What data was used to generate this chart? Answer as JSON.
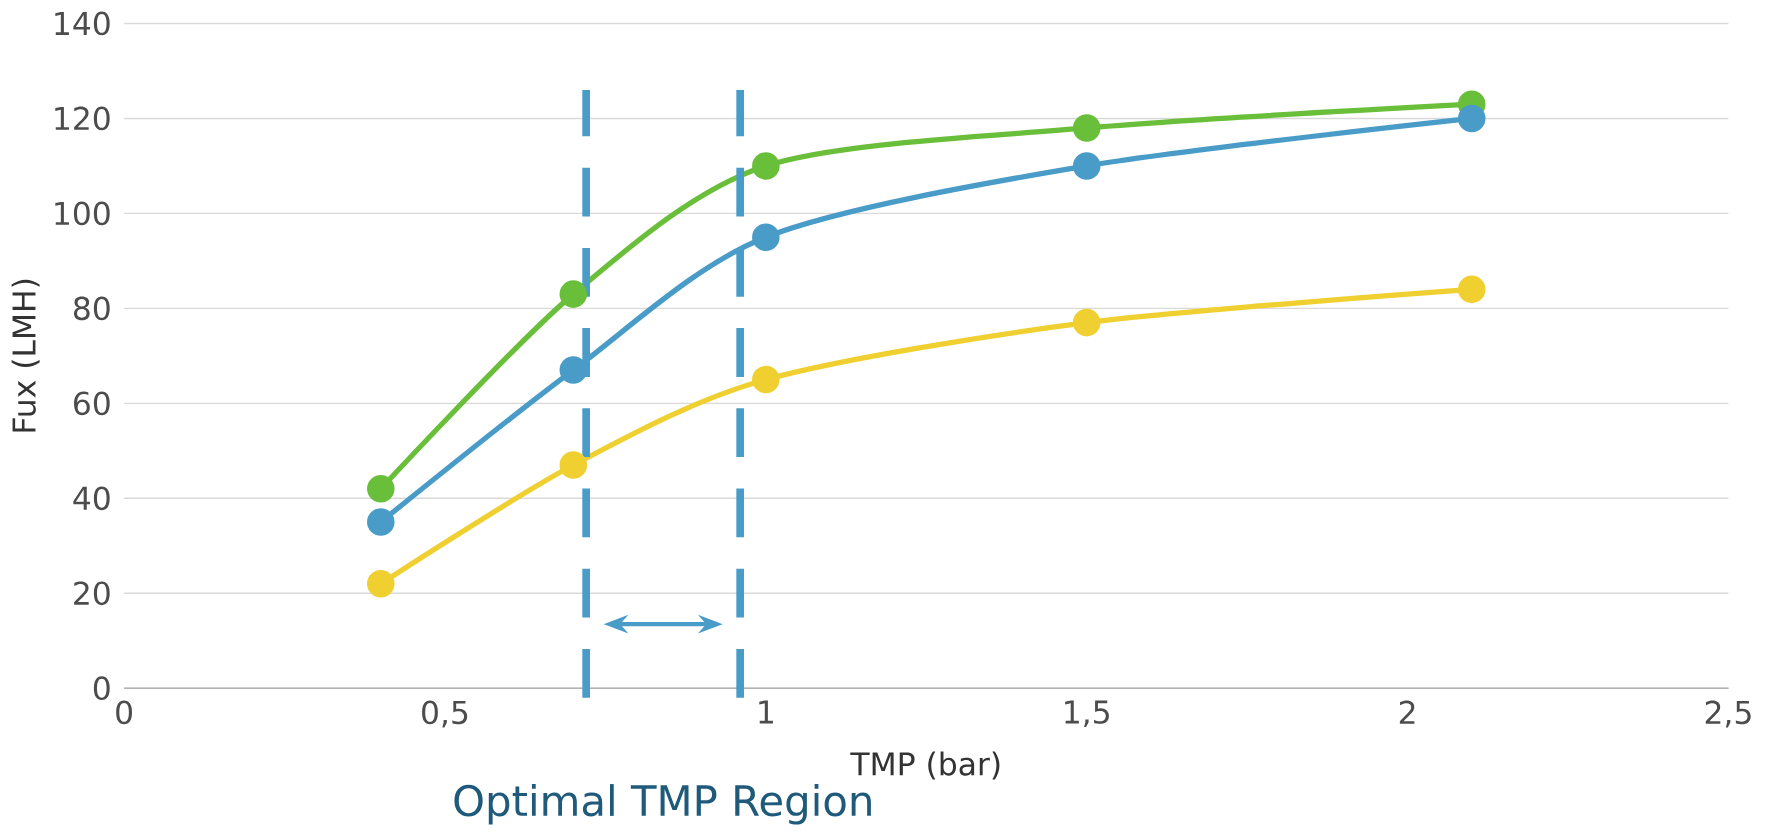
{
  "chart_data": {
    "type": "line",
    "xlabel": "TMP (bar)",
    "ylabel": "Fux (LMH)",
    "x": [
      0.4,
      0.7,
      1.0,
      1.5,
      2.1
    ],
    "series": [
      {
        "color": "#6abf3a",
        "values": [
          42,
          83,
          110,
          118,
          123
        ]
      },
      {
        "color": "#4a9cc8",
        "values": [
          35,
          67,
          95,
          110,
          120
        ]
      },
      {
        "color": "#f0d030",
        "values": [
          22,
          47,
          65,
          77,
          84
        ]
      }
    ],
    "xlim": [
      0,
      2.5
    ],
    "ylim": [
      0,
      140
    ],
    "xticks": [
      0,
      {
        "value": 0.5,
        "label": "0,5"
      },
      1,
      {
        "value": 1.5,
        "label": "1,5"
      },
      2,
      {
        "value": 2.5,
        "label": "2,5"
      }
    ],
    "yticks": [
      0,
      20,
      40,
      60,
      80,
      100,
      120,
      140
    ],
    "grid": "y",
    "marker": "circle",
    "line_style": "solid",
    "ref_lines": [
      {
        "axis": "x",
        "value": 0.72,
        "color": "#4a9cc8",
        "line_style": "dashed"
      },
      {
        "axis": "x",
        "value": 0.96,
        "color": "#4a9cc8",
        "line_style": "dashed"
      }
    ],
    "annotations": [
      "Optimal TMP Region"
    ]
  }
}
